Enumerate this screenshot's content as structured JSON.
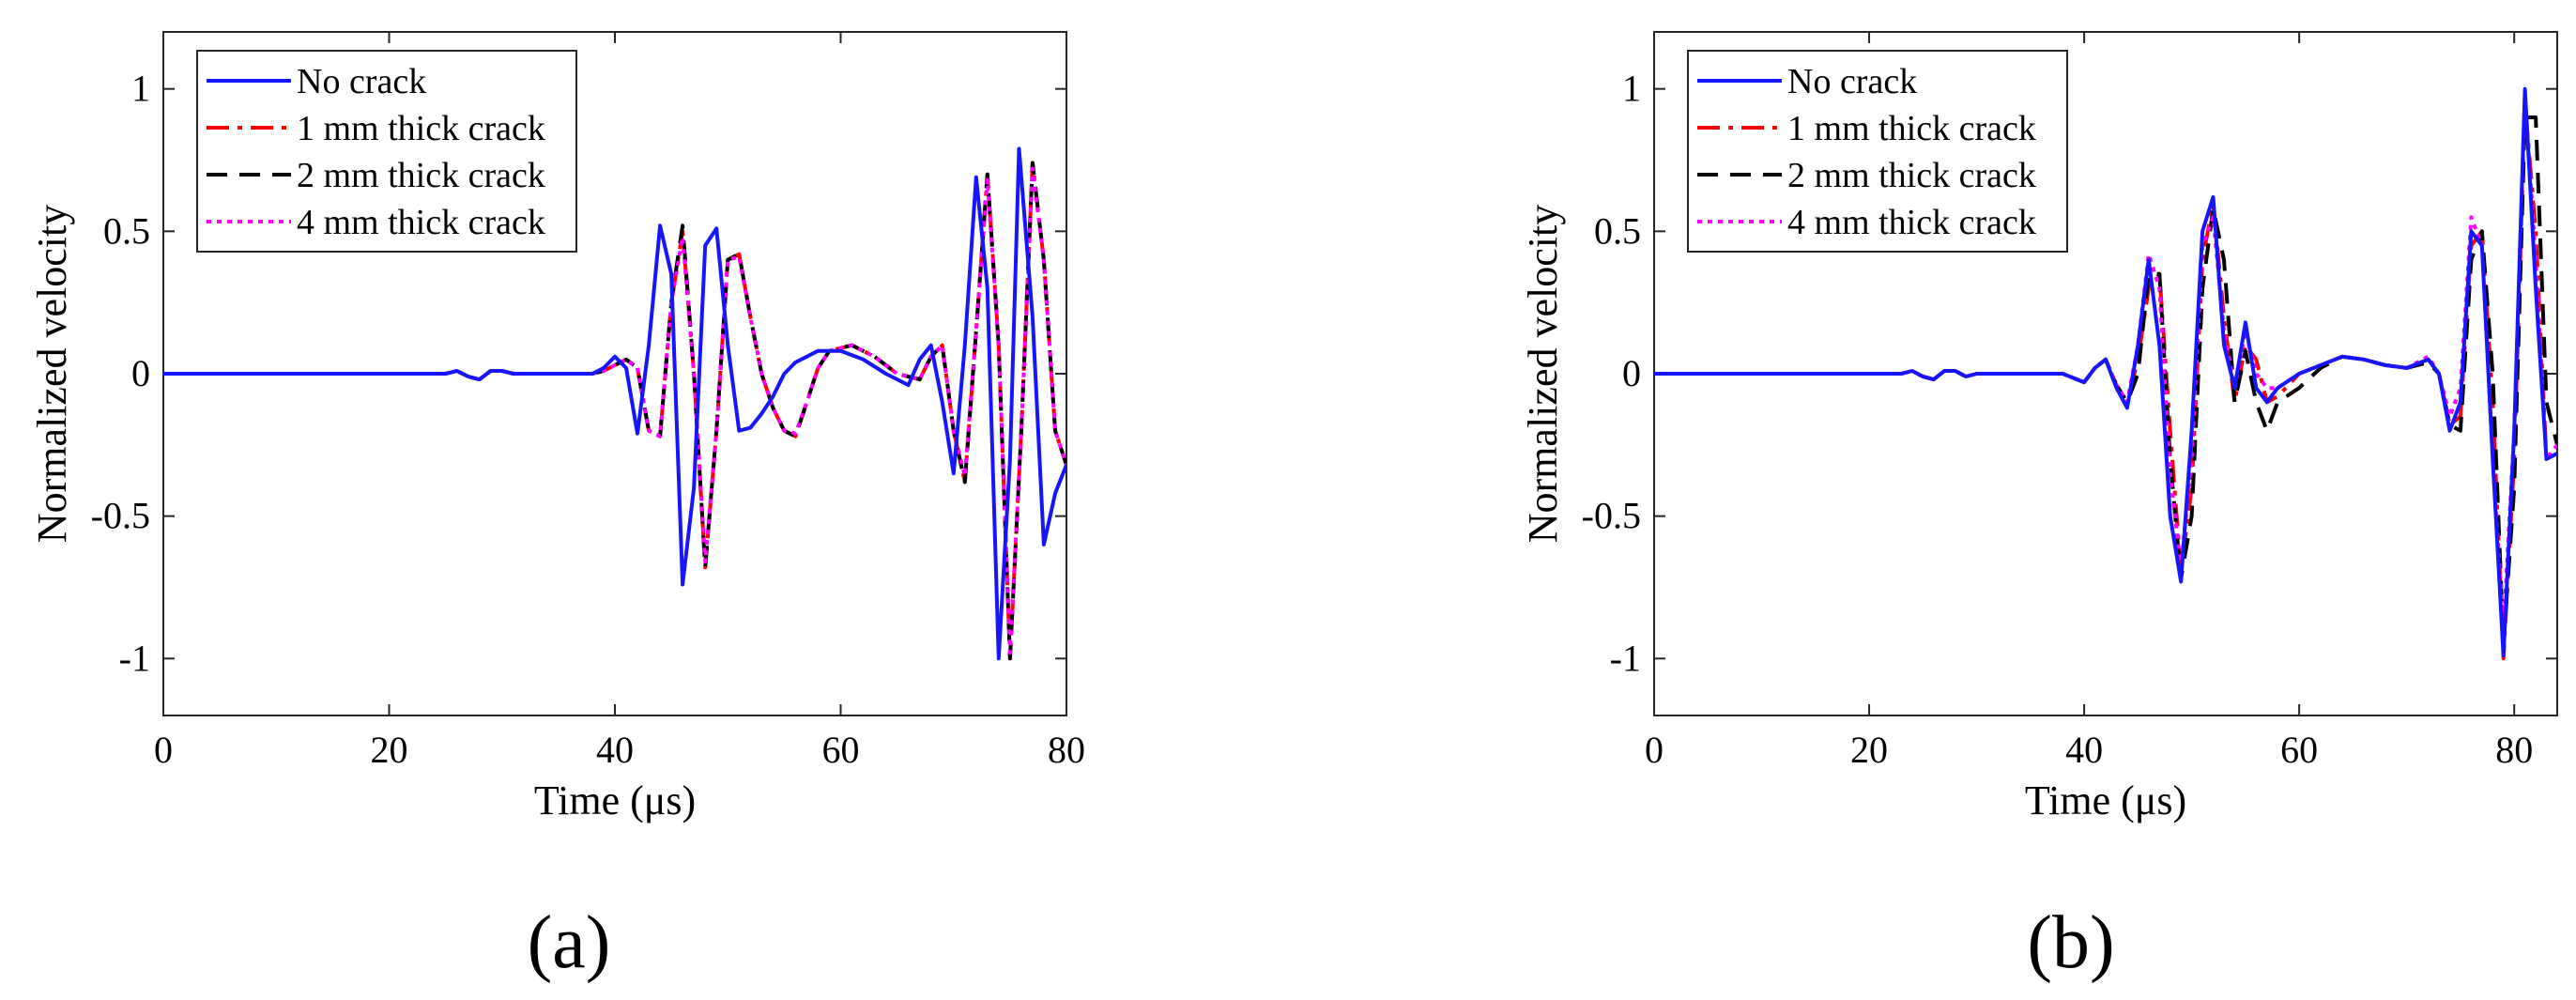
{
  "colors": {
    "no_crack": "#1515ff",
    "crack_1mm": "#ff0000",
    "crack_2mm": "#000000",
    "crack_4mm": "#ff00ff"
  },
  "chart_data": [
    {
      "type": "line",
      "caption": "(a)",
      "xlabel": "Time (μs)",
      "ylabel": "Normalized velocity",
      "xlim": [
        0,
        80
      ],
      "ylim": [
        -1.2,
        1.2
      ],
      "xticks": [
        "0",
        "20",
        "40",
        "60",
        "80"
      ],
      "yticks": [
        "1",
        "0.5",
        "0",
        "-0.5",
        "-1"
      ],
      "legend_position": "top-left",
      "grid": false,
      "series": [
        {
          "name": "No crack",
          "style": "solid",
          "color": "#1515ff",
          "x": [
            0,
            25,
            26,
            27,
            28,
            29,
            30,
            31,
            32,
            38,
            39,
            40,
            41,
            42,
            43,
            44,
            45,
            46,
            47,
            48,
            49,
            50,
            51,
            52,
            53,
            54,
            55,
            56,
            57,
            58,
            60,
            62,
            64,
            66,
            67,
            68,
            69,
            70,
            71,
            72,
            73,
            74,
            75,
            75.8,
            77,
            78,
            79,
            80
          ],
          "y": [
            0,
            0,
            0.01,
            -0.01,
            -0.02,
            0.01,
            0.01,
            0,
            0,
            0,
            0.02,
            0.06,
            0.02,
            -0.21,
            0.1,
            0.52,
            0.35,
            -0.74,
            -0.4,
            0.45,
            0.51,
            0.1,
            -0.2,
            -0.19,
            -0.14,
            -0.08,
            0.0,
            0.04,
            0.06,
            0.08,
            0.08,
            0.05,
            0.0,
            -0.04,
            0.05,
            0.1,
            -0.1,
            -0.35,
            0.1,
            0.69,
            0.3,
            -1.0,
            -0.3,
            0.79,
            0.2,
            -0.6,
            -0.42,
            -0.32
          ]
        },
        {
          "name": "1 mm thick crack",
          "style": "dashdot",
          "color": "#ff0000",
          "x": [
            0,
            25,
            26,
            27,
            28,
            29,
            30,
            31,
            32,
            38,
            39,
            40,
            41,
            42,
            43,
            44,
            45,
            46,
            47,
            48,
            49,
            50,
            51,
            52,
            53,
            54,
            55,
            56,
            57,
            58,
            59,
            61,
            63,
            65,
            67,
            68,
            69,
            70,
            71,
            72,
            73,
            74,
            75,
            76,
            77,
            78,
            79,
            80
          ],
          "y": [
            0,
            0,
            0.01,
            -0.01,
            -0.02,
            0.01,
            0.01,
            0,
            0,
            0,
            0.01,
            0.03,
            0.05,
            0.02,
            -0.2,
            -0.22,
            0.25,
            0.5,
            0.0,
            -0.68,
            -0.2,
            0.4,
            0.42,
            0.2,
            0.0,
            -0.12,
            -0.2,
            -0.22,
            -0.1,
            0.02,
            0.08,
            0.1,
            0.06,
            0.0,
            -0.02,
            0.06,
            0.1,
            -0.2,
            -0.38,
            0.15,
            0.7,
            0.1,
            -1.0,
            -0.2,
            0.74,
            0.4,
            -0.2,
            -0.32
          ]
        },
        {
          "name": "2 mm thick crack",
          "style": "dashed",
          "color": "#000000",
          "x": [
            0,
            25,
            26,
            27,
            28,
            29,
            30,
            31,
            32,
            38,
            39,
            40,
            41,
            42,
            43,
            44,
            45,
            46,
            47,
            48,
            49,
            50,
            51,
            52,
            53,
            54,
            55,
            56,
            57,
            58,
            59,
            61,
            63,
            65,
            67,
            68,
            69,
            70,
            71,
            72,
            73,
            74,
            75,
            76,
            77,
            78,
            79,
            80
          ],
          "y": [
            0,
            0,
            0.01,
            -0.01,
            -0.02,
            0.01,
            0.01,
            0,
            0,
            0,
            0.01,
            0.03,
            0.05,
            0.02,
            -0.2,
            -0.22,
            0.25,
            0.52,
            0.0,
            -0.68,
            -0.2,
            0.4,
            0.42,
            0.2,
            0.0,
            -0.12,
            -0.2,
            -0.22,
            -0.1,
            0.02,
            0.08,
            0.1,
            0.06,
            0.0,
            -0.02,
            0.06,
            0.1,
            -0.2,
            -0.38,
            0.15,
            0.7,
            0.1,
            -1.0,
            -0.2,
            0.74,
            0.4,
            -0.2,
            -0.32
          ]
        },
        {
          "name": "4 mm thick crack",
          "style": "dotted",
          "color": "#ff00ff",
          "x": [
            0,
            25,
            26,
            27,
            28,
            29,
            30,
            31,
            32,
            38,
            39,
            40,
            41,
            42,
            43,
            44,
            45,
            46,
            47,
            48,
            49,
            50,
            51,
            52,
            53,
            54,
            55,
            56,
            57,
            58,
            59,
            61,
            63,
            65,
            67,
            68,
            69,
            70,
            71,
            72,
            73,
            74,
            75,
            76,
            77,
            78,
            79,
            80
          ],
          "y": [
            0,
            0,
            0.01,
            -0.01,
            -0.02,
            0.01,
            0.01,
            0,
            0,
            0,
            0.01,
            0.03,
            0.05,
            0.02,
            -0.2,
            -0.22,
            0.25,
            0.48,
            0.0,
            -0.66,
            -0.2,
            0.4,
            0.41,
            0.2,
            0.0,
            -0.12,
            -0.2,
            -0.21,
            -0.1,
            0.02,
            0.08,
            0.1,
            0.06,
            0.0,
            -0.02,
            0.06,
            0.1,
            -0.2,
            -0.36,
            0.15,
            0.68,
            0.1,
            -0.98,
            -0.2,
            0.72,
            0.4,
            -0.2,
            -0.32
          ]
        }
      ]
    },
    {
      "type": "line",
      "caption": "(b)",
      "xlabel": "Time (μs)",
      "ylabel": "Normalized velocity",
      "xlim": [
        0,
        84
      ],
      "ylim": [
        -1.2,
        1.2
      ],
      "xticks": [
        "0",
        "20",
        "40",
        "60",
        "80"
      ],
      "yticks": [
        "1",
        "0.5",
        "0",
        "-0.5",
        "-1"
      ],
      "legend_position": "top-left",
      "grid": false,
      "series": [
        {
          "name": "No crack",
          "style": "solid",
          "color": "#1515ff",
          "x": [
            0,
            23,
            24,
            25,
            26,
            27,
            28,
            29,
            30,
            38,
            40,
            41,
            42,
            43,
            44,
            45,
            46,
            47,
            48,
            49,
            50,
            51,
            52,
            53,
            54,
            55,
            56,
            57,
            58,
            60,
            62,
            64,
            66,
            68,
            70,
            72,
            73,
            74,
            75,
            76,
            77,
            78,
            79,
            80,
            81,
            82,
            83,
            84
          ],
          "y": [
            0,
            0,
            0.01,
            -0.01,
            -0.02,
            0.01,
            0.01,
            -0.01,
            0,
            0,
            -0.03,
            0.02,
            0.05,
            -0.05,
            -0.12,
            0.1,
            0.4,
            0.1,
            -0.5,
            -0.73,
            -0.2,
            0.5,
            0.62,
            0.1,
            -0.05,
            0.18,
            -0.05,
            -0.1,
            -0.05,
            0.0,
            0.03,
            0.06,
            0.05,
            0.03,
            0.02,
            0.05,
            0.0,
            -0.2,
            -0.1,
            0.5,
            0.45,
            -0.3,
            -0.99,
            -0.2,
            1.0,
            0.3,
            -0.3,
            -0.28
          ]
        },
        {
          "name": "1 mm thick crack",
          "style": "dashdot",
          "color": "#ff0000",
          "x": [
            0,
            23,
            24,
            25,
            26,
            27,
            28,
            29,
            30,
            38,
            40,
            41,
            42,
            43,
            44,
            45,
            46,
            47,
            48,
            49,
            50,
            51,
            52,
            53,
            54,
            55,
            56,
            57,
            58,
            60,
            62,
            64,
            66,
            68,
            70,
            72,
            73,
            74,
            75,
            76,
            77,
            78,
            79,
            80,
            81,
            82,
            83,
            84
          ],
          "y": [
            0,
            0,
            0.01,
            -0.01,
            -0.02,
            0.01,
            0.01,
            -0.01,
            0,
            0,
            -0.03,
            0.02,
            0.05,
            -0.04,
            -0.1,
            0.05,
            0.3,
            0.35,
            -0.2,
            -0.7,
            -0.4,
            0.4,
            0.6,
            0.2,
            -0.1,
            0.1,
            0.05,
            -0.1,
            -0.08,
            0.0,
            0.03,
            0.06,
            0.05,
            0.03,
            0.02,
            0.05,
            0.0,
            -0.18,
            -0.15,
            0.45,
            0.5,
            -0.1,
            -1.0,
            -0.3,
            0.95,
            0.5,
            -0.3,
            -0.28
          ]
        },
        {
          "name": "2 mm thick crack",
          "style": "dashed",
          "color": "#000000",
          "x": [
            0,
            23,
            24,
            25,
            26,
            27,
            28,
            29,
            30,
            38,
            40,
            41,
            42,
            43,
            44,
            45,
            46,
            47,
            48,
            49,
            50,
            51,
            52,
            53,
            54,
            55,
            56,
            57,
            58,
            60,
            62,
            64,
            66,
            68,
            70,
            72,
            73,
            74,
            75,
            76,
            77,
            78,
            79,
            80,
            81,
            82,
            83,
            84
          ],
          "y": [
            0,
            0,
            0.01,
            -0.01,
            -0.02,
            0.01,
            0.01,
            -0.01,
            0,
            0,
            -0.03,
            0.02,
            0.05,
            -0.04,
            -0.1,
            0.0,
            0.35,
            0.35,
            -0.3,
            -0.72,
            -0.5,
            0.3,
            0.58,
            0.4,
            -0.1,
            0.08,
            -0.1,
            -0.2,
            -0.1,
            -0.05,
            0.02,
            0.06,
            0.05,
            0.03,
            0.02,
            0.04,
            0.0,
            -0.18,
            -0.2,
            0.4,
            0.5,
            0.0,
            -0.95,
            -0.4,
            0.9,
            0.9,
            -0.1,
            -0.25
          ]
        },
        {
          "name": "4 mm thick crack",
          "style": "dotted",
          "color": "#ff00ff",
          "x": [
            0,
            23,
            24,
            25,
            26,
            27,
            28,
            29,
            30,
            38,
            40,
            41,
            42,
            43,
            44,
            45,
            46,
            47,
            48,
            49,
            50,
            51,
            52,
            53,
            54,
            55,
            56,
            57,
            58,
            60,
            62,
            64,
            66,
            68,
            70,
            72,
            73,
            74,
            75,
            76,
            77,
            78,
            79,
            80,
            81,
            82,
            83,
            84
          ],
          "y": [
            0,
            0,
            0.01,
            -0.01,
            -0.02,
            0.01,
            0.01,
            -0.01,
            0,
            0,
            -0.03,
            0.02,
            0.05,
            -0.04,
            -0.1,
            0.1,
            0.42,
            0.3,
            -0.35,
            -0.68,
            -0.3,
            0.45,
            0.55,
            0.15,
            -0.05,
            0.15,
            0.0,
            -0.05,
            -0.05,
            0.0,
            0.03,
            0.06,
            0.05,
            0.03,
            0.02,
            0.06,
            0.0,
            -0.15,
            -0.05,
            0.55,
            0.45,
            -0.3,
            -0.9,
            -0.2,
            0.98,
            0.4,
            -0.3,
            -0.25
          ]
        }
      ]
    }
  ]
}
